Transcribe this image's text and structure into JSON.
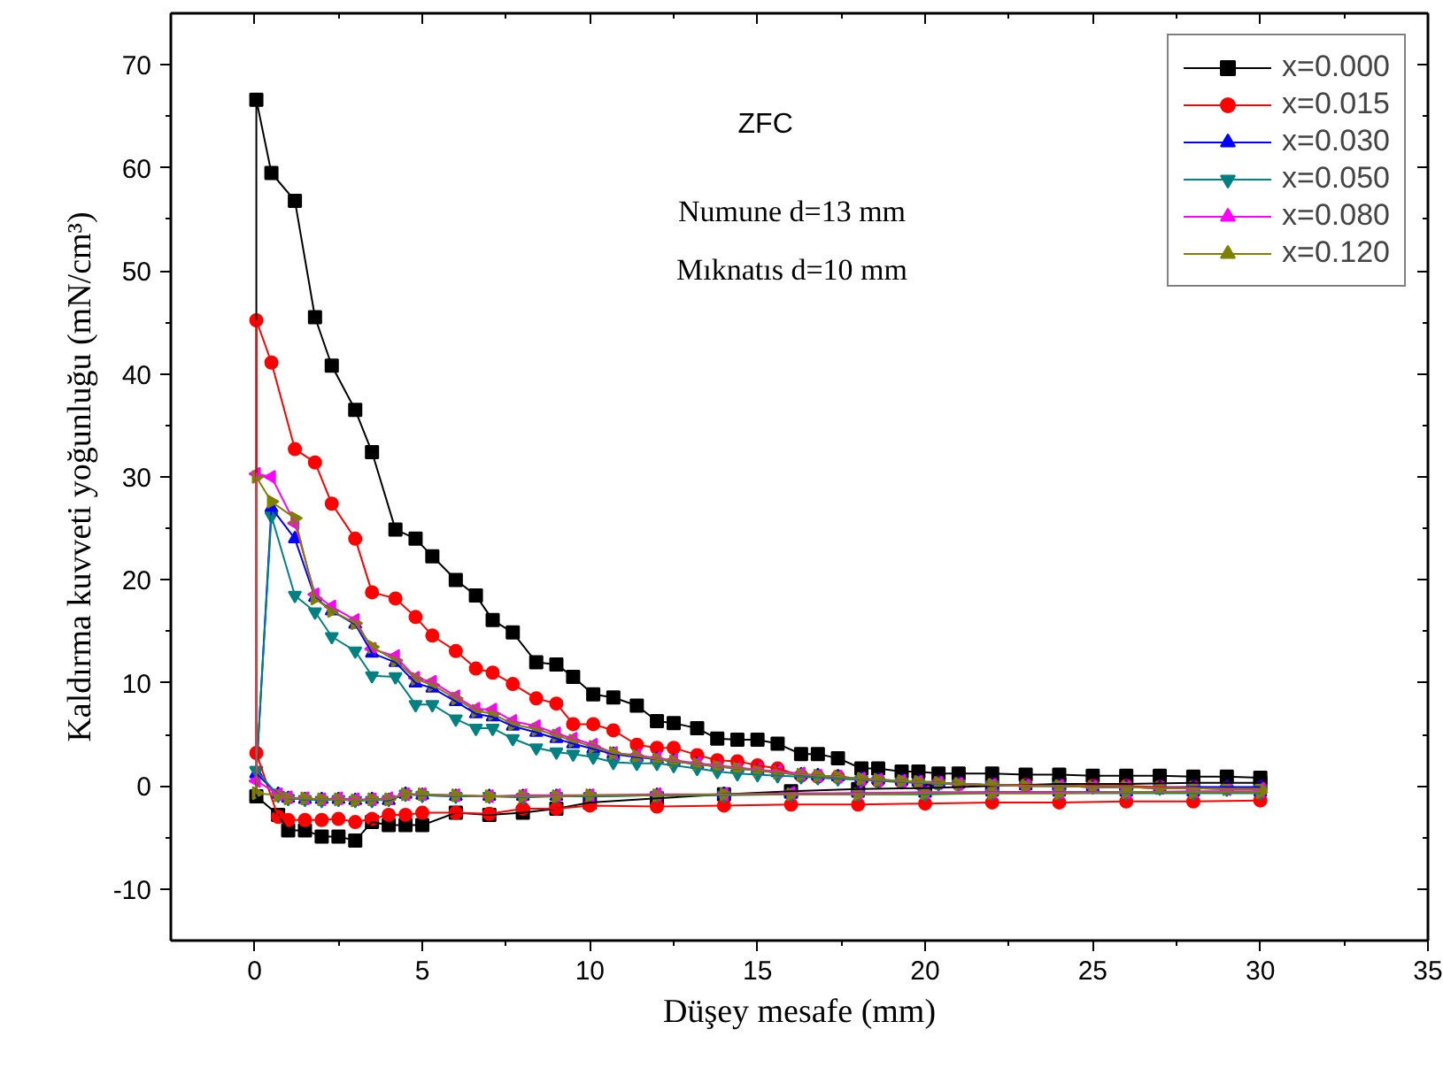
{
  "chart_data": {
    "type": "line",
    "xlabel": "Düşey mesafe (mm)",
    "ylabel": "Kaldırma kuvveti yoğunluğu (mN/cm³)",
    "annotations": [
      "ZFC",
      "Numune d=13 mm",
      "Mıknatıs d=10 mm"
    ],
    "xlim": [
      -2.5,
      35
    ],
    "ylim": [
      -15,
      75
    ],
    "xticks": [
      0,
      5,
      10,
      15,
      20,
      25,
      30,
      35
    ],
    "yticks": [
      -10,
      0,
      10,
      20,
      30,
      40,
      50,
      60,
      70
    ],
    "grid": false,
    "legend": "top right",
    "line_style": "solid",
    "x": [
      30,
      28,
      26,
      24,
      22,
      20,
      18,
      16,
      14,
      12,
      10,
      9,
      8,
      7,
      6,
      5,
      4.5,
      4,
      3.5,
      3,
      2.5,
      2,
      1.5,
      1,
      0.7,
      0.05,
      0.05,
      0.5,
      1.2,
      1.8,
      2.3,
      3,
      3.5,
      4.2,
      4.8,
      5.3,
      6,
      6.6,
      7.1,
      7.7,
      8.4,
      9,
      9.5,
      10.1,
      10.7,
      11.4,
      12,
      12.5,
      13.2,
      13.8,
      14.4,
      15,
      15.6,
      16.3,
      16.8,
      17.4,
      18.1,
      18.6,
      19.3,
      19.8,
      20.4,
      21,
      22,
      23,
      24,
      25,
      26,
      27,
      28,
      29,
      30
    ],
    "series": [
      {
        "name": "x=0.000",
        "color": "#000000",
        "marker": "square",
        "values": [
          0.3,
          0.3,
          0.2,
          0.2,
          0,
          -0.2,
          -0.3,
          -0.5,
          -0.8,
          -1.2,
          -1.6,
          -2.2,
          -2.6,
          -2.8,
          -2.6,
          -3.8,
          -3.8,
          -3.8,
          -3.5,
          -5.3,
          -4.9,
          -4.9,
          -4.3,
          -4.3,
          -2.8,
          -1.0,
          66.6,
          59.5,
          56.8,
          45.5,
          40.8,
          36.5,
          32.4,
          24.9,
          24.0,
          22.3,
          20.0,
          18.5,
          16.1,
          14.9,
          12.0,
          11.8,
          10.6,
          8.9,
          8.6,
          7.8,
          6.3,
          6.1,
          5.6,
          4.6,
          4.5,
          4.5,
          4.1,
          3.1,
          3.1,
          2.7,
          1.7,
          1.7,
          1.4,
          1.4,
          1.2,
          1.2,
          1.2,
          1.1,
          1.1,
          1.0,
          1.0,
          1.0,
          0.9,
          0.9,
          0.8
        ]
      },
      {
        "name": "x=0.015",
        "color": "#ff0000",
        "marker": "circle",
        "values": [
          -1.4,
          -1.5,
          -1.5,
          -1.6,
          -1.6,
          -1.7,
          -1.8,
          -1.8,
          -1.9,
          -2.0,
          -1.9,
          -2.2,
          -2.2,
          -2.7,
          -2.6,
          -2.6,
          -2.8,
          -2.8,
          -3.2,
          -3.5,
          -3.2,
          -3.3,
          -3.3,
          -3.3,
          -3.0,
          3.2,
          45.2,
          41.1,
          32.7,
          31.4,
          27.4,
          24.0,
          18.8,
          18.2,
          16.4,
          14.6,
          13.1,
          11.4,
          11.0,
          9.9,
          8.5,
          8.0,
          6.0,
          6.0,
          5.4,
          4.0,
          3.7,
          3.7,
          3.0,
          2.5,
          2.4,
          2.0,
          1.7,
          1.0,
          0.9,
          0.9,
          0.6,
          0.5,
          0.4,
          0.3,
          0.3,
          0.2,
          0.1,
          0.1,
          0,
          0,
          0,
          -0.1,
          -0.1,
          -0.2,
          -0.2
        ]
      },
      {
        "name": "x=0.030",
        "color": "#0000ff",
        "marker": "triangle",
        "values": [
          -0.6,
          -0.6,
          -0.6,
          -0.6,
          -0.6,
          -0.7,
          -0.7,
          -0.8,
          -0.8,
          -0.9,
          -1.0,
          -1.0,
          -1.0,
          -1.0,
          -1.0,
          -0.9,
          -0.8,
          -1.4,
          -1.3,
          -1.4,
          -1.3,
          -1.3,
          -1.3,
          -1.2,
          -0.8,
          1.2,
          1.2,
          27.0,
          24.0,
          18.3,
          17.0,
          15.7,
          12.9,
          12.0,
          10.0,
          9.5,
          8.2,
          7.0,
          6.7,
          5.8,
          5.2,
          4.6,
          4.1,
          3.6,
          3.1,
          2.8,
          2.6,
          2.4,
          2.1,
          1.9,
          1.7,
          1.5,
          1.3,
          1.1,
          1.0,
          0.9,
          0.7,
          0.6,
          0.5,
          0.4,
          0.3,
          0.2,
          0.1,
          0,
          0,
          -0.1,
          -0.1,
          -0.2,
          -0.1,
          -0.1,
          -0.1
        ]
      },
      {
        "name": "x=0.050",
        "color": "#008080",
        "marker": "triangle-down",
        "values": [
          -0.7,
          -0.7,
          -0.7,
          -0.7,
          -0.7,
          -0.8,
          -0.8,
          -0.8,
          -0.9,
          -0.9,
          -1.0,
          -1.0,
          -1.1,
          -1.0,
          -1.0,
          -0.9,
          -0.8,
          -1.3,
          -1.4,
          -1.4,
          -1.3,
          -1.4,
          -1.3,
          -1.2,
          -0.9,
          1.5,
          1.5,
          26.2,
          18.5,
          16.9,
          14.5,
          13.1,
          10.7,
          10.6,
          7.9,
          7.9,
          6.5,
          5.6,
          5.6,
          4.6,
          3.7,
          3.3,
          3.1,
          2.8,
          2.3,
          2.2,
          2.2,
          2.0,
          1.7,
          1.4,
          1.2,
          1.1,
          1.0,
          0.9,
          0.8,
          0.7,
          0.6,
          0.5,
          0.4,
          0.3,
          0.2,
          0.2,
          0.1,
          0,
          0,
          -0.1,
          -0.1,
          -0.2,
          -0.2,
          -0.3,
          -0.3
        ]
      },
      {
        "name": "x=0.080",
        "color": "#ff00ff",
        "marker": "triangle-left",
        "values": [
          -0.5,
          -0.5,
          -0.6,
          -0.6,
          -0.6,
          -0.6,
          -0.7,
          -0.7,
          -0.8,
          -0.8,
          -0.9,
          -0.9,
          -0.9,
          -1.0,
          -0.9,
          -0.8,
          -0.8,
          -1.2,
          -1.3,
          -1.3,
          -1.2,
          -1.3,
          -1.2,
          -1.1,
          -0.8,
          0.5,
          30.3,
          30.0,
          25.5,
          18.6,
          17.4,
          16.1,
          13.3,
          12.6,
          10.5,
          10.1,
          8.7,
          7.5,
          7.4,
          6.3,
          5.8,
          5.1,
          4.6,
          4.0,
          3.2,
          3.0,
          2.7,
          2.5,
          2.2,
          2.0,
          1.8,
          1.6,
          1.4,
          1.2,
          1.0,
          0.9,
          0.7,
          0.6,
          0.5,
          0.4,
          0.3,
          0.2,
          0.1,
          0,
          0,
          -0.1,
          -0.1,
          -0.2,
          -0.2,
          -0.3,
          -0.3
        ]
      },
      {
        "name": "x=0.120",
        "color": "#808000",
        "marker": "triangle-right",
        "values": [
          -0.6,
          -0.6,
          -0.6,
          -0.7,
          -0.7,
          -0.7,
          -0.8,
          -0.8,
          -0.8,
          -0.9,
          -0.9,
          -1.0,
          -1.0,
          -1.0,
          -0.9,
          -0.8,
          -0.8,
          -1.3,
          -1.3,
          -1.4,
          -1.3,
          -1.3,
          -1.2,
          -1.2,
          -0.9,
          -0.7,
          30.0,
          27.6,
          26.0,
          18.2,
          17.0,
          15.8,
          13.5,
          12.2,
          10.4,
          9.8,
          8.5,
          7.3,
          7.0,
          6.0,
          5.5,
          4.9,
          4.4,
          3.8,
          3.2,
          2.9,
          2.6,
          2.4,
          2.1,
          1.9,
          1.7,
          1.5,
          1.3,
          1.1,
          1.0,
          0.9,
          0.7,
          0.6,
          0.5,
          0.4,
          0.3,
          0.2,
          0.1,
          0,
          0,
          -0.1,
          -0.1,
          -0.2,
          -0.2,
          -0.3,
          -0.3
        ]
      }
    ]
  }
}
